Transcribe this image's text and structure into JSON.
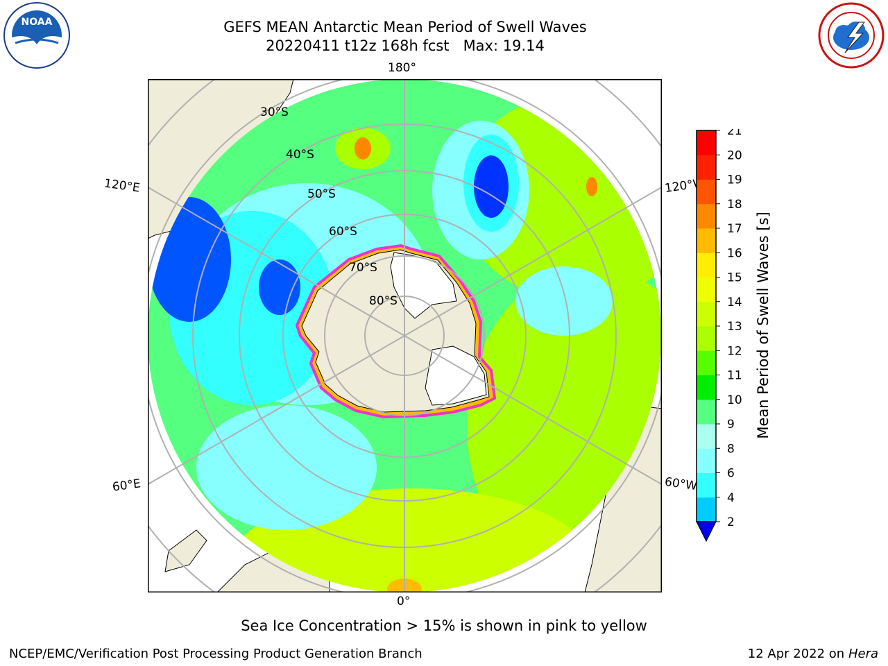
{
  "header": {
    "title_line1": "GEFS MEAN Antarctic Mean Period of Swell Waves",
    "title_line2": "20220411 t12z 168h fcst   Max: 19.14"
  },
  "logos": {
    "left": {
      "icon": "noaa-logo",
      "text": "NOAA",
      "ring_text": "NATIONAL OCEANIC AND ATMOSPHERIC ADMINISTRATION · U.S. DEPARTMENT OF COMMERCE"
    },
    "right": {
      "icon": "national-weather-service-logo",
      "ring_text": "NATIONAL WEATHER SERVICE"
    }
  },
  "map": {
    "projection": "south-polar-stereographic",
    "lon_labels": {
      "top": "180°",
      "bottom": "0°",
      "left_upper": "120°E",
      "right_upper": "120°W",
      "left_lower": "60°E",
      "right_lower": "60°W"
    },
    "lat_labels": [
      "30°S",
      "40°S",
      "50°S",
      "60°S",
      "70°S",
      "80°S"
    ],
    "colors": {
      "land": "#efedd9",
      "ocean_mid": "#55ff80",
      "ice_edge": "#ee33cc",
      "grid": "#b0b0b0"
    }
  },
  "colorbar": {
    "label": "Mean Period of Swell Waves [s]",
    "ticks": [
      "2",
      "4",
      "6",
      "8",
      "9",
      "10",
      "11",
      "12",
      "13",
      "14",
      "15",
      "16",
      "17",
      "18",
      "19",
      "20",
      "21"
    ],
    "colors": [
      "#0033ff",
      "#00ccff",
      "#33ffff",
      "#88ffff",
      "#aaffee",
      "#55ff80",
      "#00ee00",
      "#55ff00",
      "#aaff00",
      "#ccff00",
      "#eeff00",
      "#ffee00",
      "#ffbb00",
      "#ff8800",
      "#ff5500",
      "#ff2200",
      "#ff0000"
    ],
    "extend_min_color": "#0000ee"
  },
  "notes": {
    "sea_ice": "Sea Ice Concentration > 15% is shown in pink to yellow"
  },
  "footer": {
    "left": "NCEP/EMC/Verification Post Processing Product Generation Branch",
    "right_prefix": "12 Apr 2022 on ",
    "right_machine": "Hera"
  }
}
